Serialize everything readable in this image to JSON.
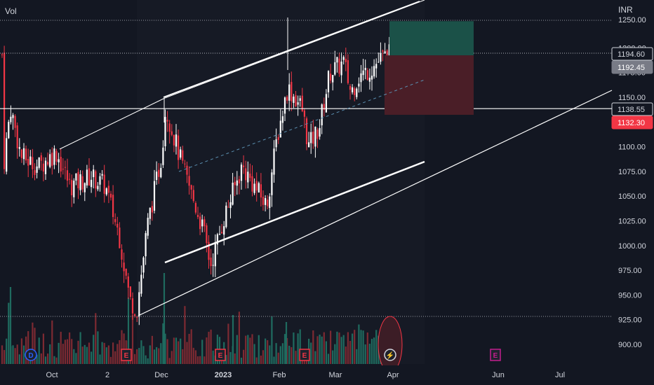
{
  "header": {
    "volume_label": "Vol",
    "currency": "INR"
  },
  "colors": {
    "background": "#131722",
    "up": "#ffffff",
    "down": "#f23645",
    "vol_up": "#1f6b5f",
    "vol_down": "#7d2a32",
    "text": "#d1d4dc",
    "trendline": "#ffffff",
    "profit_zone": "#1b5148",
    "loss_zone": "#4a1e27"
  },
  "chart_data": {
    "type": "candlestick",
    "instrument_currency": "INR",
    "y_axis": {
      "ticks": [
        "900.00",
        "925.00",
        "950.00",
        "975.00",
        "1000.00",
        "1025.00",
        "1050.00",
        "1075.00",
        "1100.00",
        "1125.00",
        "1150.00",
        "1175.00",
        "1200.00",
        "1250.00"
      ],
      "range": [
        884,
        1255
      ],
      "side": "right"
    },
    "x_axis": {
      "ticks": [
        "Oct",
        "2",
        "Dec",
        "2023",
        "Feb",
        "Mar",
        "Apr",
        "Jun",
        "Jul"
      ]
    },
    "price_labels": [
      {
        "value": "1194.60",
        "style": "outlined-dark"
      },
      {
        "value": "1192.45",
        "style": "gray"
      },
      {
        "value": "1138.55",
        "style": "outlined-dark"
      },
      {
        "value": "1132.30",
        "style": "red"
      }
    ],
    "horizontal_lines": [
      1194.6,
      1138.55
    ],
    "position_tool": {
      "entry": 1192.45,
      "target": 1227,
      "stop": 1132.3
    },
    "events": [
      {
        "date": "Sep",
        "type": "D"
      },
      {
        "date": "Nov",
        "type": "E"
      },
      {
        "date": "Jan",
        "type": "E"
      },
      {
        "date": "Feb",
        "type": "E"
      },
      {
        "date": "Apr",
        "type": "⚡"
      },
      {
        "date": "May",
        "type": "E"
      }
    ]
  }
}
